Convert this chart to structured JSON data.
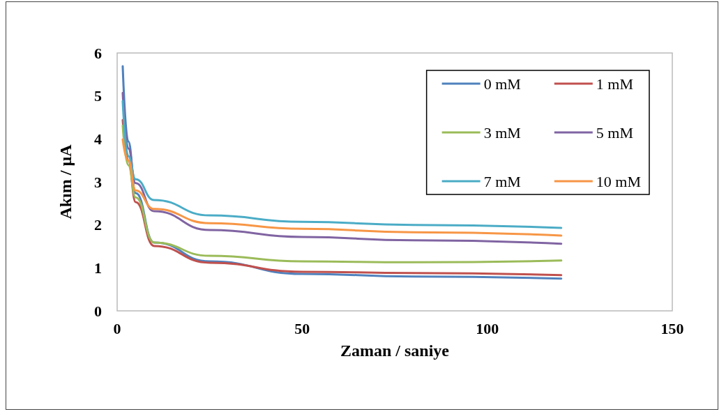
{
  "chart_data": {
    "type": "line",
    "xlabel": "Zaman / saniye",
    "ylabel": "Akım / µA",
    "xlim": [
      0,
      150
    ],
    "xticks": [
      0,
      50,
      100,
      150
    ],
    "ylim": [
      0,
      6
    ],
    "yticks": [
      0,
      1,
      2,
      3,
      4,
      5,
      6
    ],
    "grid": false,
    "legend": "top right",
    "marker": "none",
    "line_style": "solid",
    "x": [
      1.5,
      3,
      5,
      10,
      25,
      50,
      80,
      120
    ],
    "series": [
      {
        "name": "0 mM",
        "color": "#4f81bd",
        "values": [
          5.69,
          3.94,
          2.74,
          1.59,
          1.15,
          0.86,
          0.8,
          0.75
        ]
      },
      {
        "name": "1 mM",
        "color": "#c0504d",
        "values": [
          4.44,
          3.5,
          2.53,
          1.51,
          1.12,
          0.91,
          0.88,
          0.83
        ]
      },
      {
        "name": "3 mM",
        "color": "#9bbb59",
        "values": [
          4.31,
          3.39,
          2.64,
          1.59,
          1.28,
          1.15,
          1.13,
          1.17
        ]
      },
      {
        "name": "5 mM",
        "color": "#8064a2",
        "values": [
          5.07,
          3.78,
          2.97,
          2.32,
          1.88,
          1.72,
          1.64,
          1.56
        ]
      },
      {
        "name": "7 mM",
        "color": "#4bacc6",
        "values": [
          4.88,
          3.6,
          3.06,
          2.58,
          2.22,
          2.07,
          2.0,
          1.93
        ]
      },
      {
        "name": "10 mM",
        "color": "#f79646",
        "values": [
          3.99,
          3.5,
          2.8,
          2.37,
          2.04,
          1.91,
          1.83,
          1.75
        ]
      }
    ]
  }
}
